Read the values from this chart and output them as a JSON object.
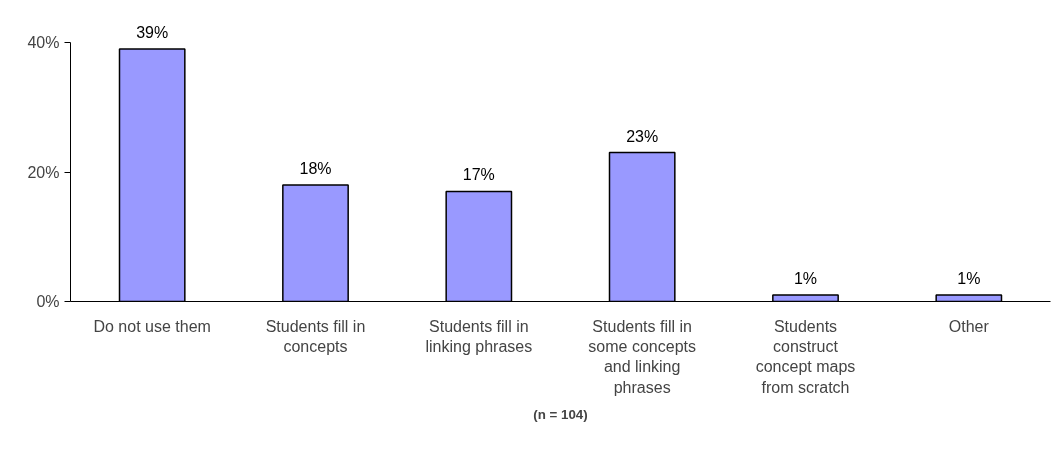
{
  "chart_data": {
    "type": "bar",
    "categories": [
      "Do not use them",
      "Students fill in concepts",
      "Students fill in linking phrases",
      "Students fill in some concepts and linking phrases",
      "Students construct concept maps from scratch",
      "Other"
    ],
    "values": [
      39,
      18,
      17,
      23,
      1,
      1
    ],
    "value_labels": [
      "39%",
      "18%",
      "17%",
      "23%",
      "1%",
      "1%"
    ],
    "color": "#9999ff",
    "ylim": [
      0,
      40
    ],
    "yticks": [
      {
        "value": 0,
        "label": "0%"
      },
      {
        "value": 20,
        "label": "20%"
      },
      {
        "value": 40,
        "label": "40%"
      }
    ],
    "grid": false,
    "annotations": [
      "(n = 104)"
    ]
  }
}
